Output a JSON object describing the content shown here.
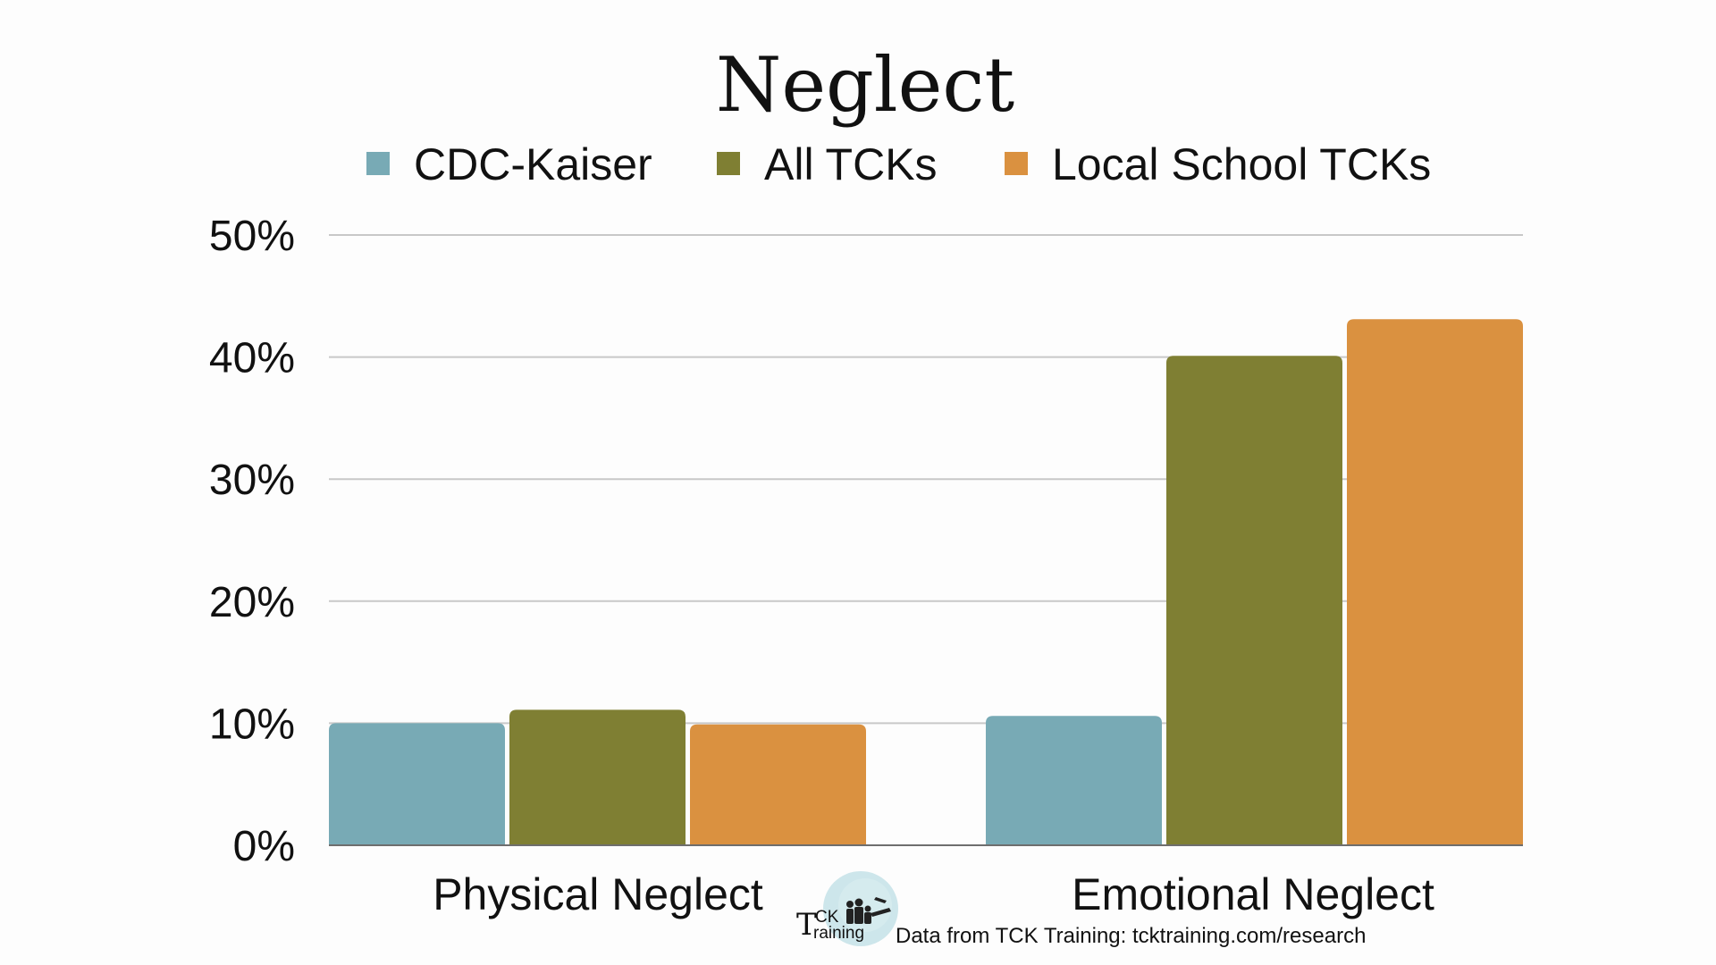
{
  "chart_data": {
    "type": "bar",
    "title": "Neglect",
    "categories": [
      "Physical Neglect",
      "Emotional Neglect"
    ],
    "series": [
      {
        "name": "CDC-Kaiser",
        "color": "#78aab5",
        "values": [
          10.0,
          10.6
        ]
      },
      {
        "name": "All TCKs",
        "color": "#7f7f33",
        "values": [
          11.1,
          40.1
        ]
      },
      {
        "name": "Local School TCKs",
        "color": "#da9140",
        "values": [
          9.9,
          43.1
        ]
      }
    ],
    "yticks": [
      "0%",
      "10%",
      "20%",
      "30%",
      "40%",
      "50%"
    ],
    "ylim": [
      0,
      50
    ],
    "grid": true,
    "legend_position": "top"
  },
  "logo": {
    "text_big": "T",
    "text_ck": "CK",
    "text_raining": "raining"
  },
  "source_note": "Data from TCK Training: tcktraining.com/research"
}
